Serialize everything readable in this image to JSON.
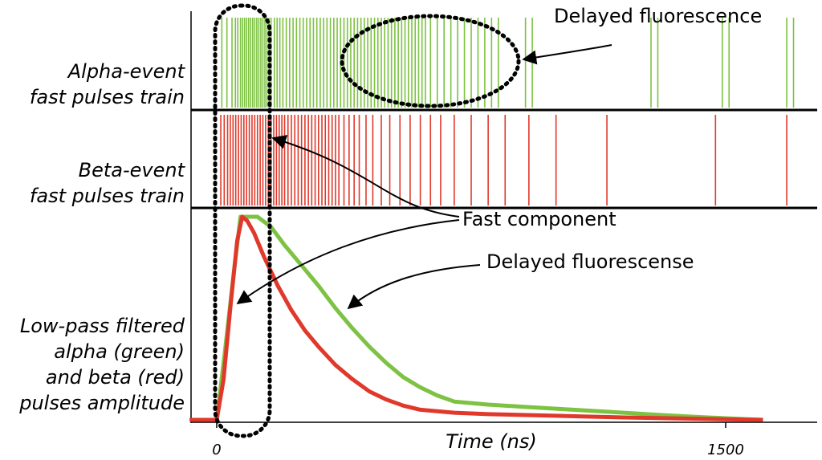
{
  "labels": {
    "alpha_line1": "Alpha-event",
    "alpha_line2": "fast pulses train",
    "beta_line1": "Beta-event",
    "beta_line2": "fast pulses train",
    "lp_line1": "Low-pass filtered",
    "lp_line2": "alpha (green)",
    "lp_line3": "and beta (red)",
    "lp_line4": "pulses amplitude"
  },
  "annotations": {
    "delayed_top": "Delayed fluorescence",
    "fast_component": "Fast component",
    "delayed_bottom": "Delayed fluorescense"
  },
  "axis": {
    "xlabel": "Time (ns)",
    "tick_0": "0",
    "tick_1500": "1500"
  },
  "colors": {
    "alpha": "#7dc242",
    "beta": "#e0392b",
    "axis": "#000000"
  },
  "chart_data": {
    "type": "line",
    "xlabel": "Time (ns)",
    "xlim": [
      -80,
      1770
    ],
    "x_ticks": [
      0,
      1500
    ],
    "series": [
      {
        "name": "alpha (green)",
        "color": "#7dc242",
        "x": [
          -80,
          0,
          25,
          50,
          70,
          120,
          160,
          200,
          250,
          300,
          350,
          400,
          450,
          500,
          550,
          600,
          650,
          700,
          800,
          900,
          1000,
          1100,
          1200,
          1300,
          1400,
          1500,
          1610
        ],
        "y": [
          0,
          0,
          0.35,
          0.72,
          1.0,
          1.0,
          0.95,
          0.86,
          0.76,
          0.66,
          0.55,
          0.45,
          0.36,
          0.28,
          0.21,
          0.16,
          0.12,
          0.09,
          0.075,
          0.065,
          0.055,
          0.045,
          0.035,
          0.025,
          0.016,
          0.008,
          0.0
        ]
      },
      {
        "name": "beta (red)",
        "color": "#e0392b",
        "x": [
          -80,
          0,
          20,
          40,
          60,
          75,
          90,
          110,
          140,
          180,
          220,
          260,
          300,
          350,
          400,
          450,
          500,
          550,
          600,
          700,
          800,
          900,
          1000,
          1100,
          1200,
          1300,
          1400,
          1500,
          1610
        ],
        "y": [
          0,
          0,
          0.2,
          0.55,
          0.88,
          1.0,
          0.98,
          0.92,
          0.8,
          0.66,
          0.54,
          0.44,
          0.36,
          0.27,
          0.2,
          0.14,
          0.1,
          0.07,
          0.05,
          0.035,
          0.028,
          0.024,
          0.02,
          0.016,
          0.012,
          0.009,
          0.006,
          0.003,
          0.0
        ]
      }
    ],
    "alpha_pulses_ns": [
      15,
      30,
      45,
      55,
      62,
      70,
      76,
      82,
      88,
      94,
      100,
      106,
      112,
      118,
      124,
      130,
      136,
      142,
      148,
      154,
      160,
      170,
      178,
      186,
      195,
      205,
      215,
      225,
      235,
      245,
      255,
      265,
      275,
      285,
      295,
      305,
      315,
      325,
      335,
      345,
      355,
      365,
      375,
      385,
      395,
      405,
      415,
      425,
      435,
      445,
      455,
      465,
      475,
      485,
      495,
      505,
      515,
      525,
      535,
      545,
      555,
      565,
      575,
      585,
      595,
      605,
      615,
      630,
      650,
      670,
      690,
      710,
      730,
      750,
      770,
      790,
      810,
      830,
      910,
      930,
      1280,
      1300,
      1490,
      1510,
      1680,
      1700
    ],
    "beta_pulses_ns": [
      12,
      22,
      32,
      40,
      48,
      56,
      64,
      72,
      80,
      88,
      96,
      104,
      112,
      120,
      128,
      136,
      144,
      152,
      160,
      168,
      176,
      184,
      192,
      200,
      210,
      220,
      230,
      240,
      250,
      260,
      270,
      280,
      290,
      300,
      310,
      320,
      330,
      340,
      350,
      360,
      375,
      390,
      405,
      420,
      440,
      460,
      485,
      510,
      540,
      570,
      600,
      630,
      660,
      700,
      750,
      800,
      850,
      920,
      1000,
      1150,
      1470,
      1680
    ]
  }
}
